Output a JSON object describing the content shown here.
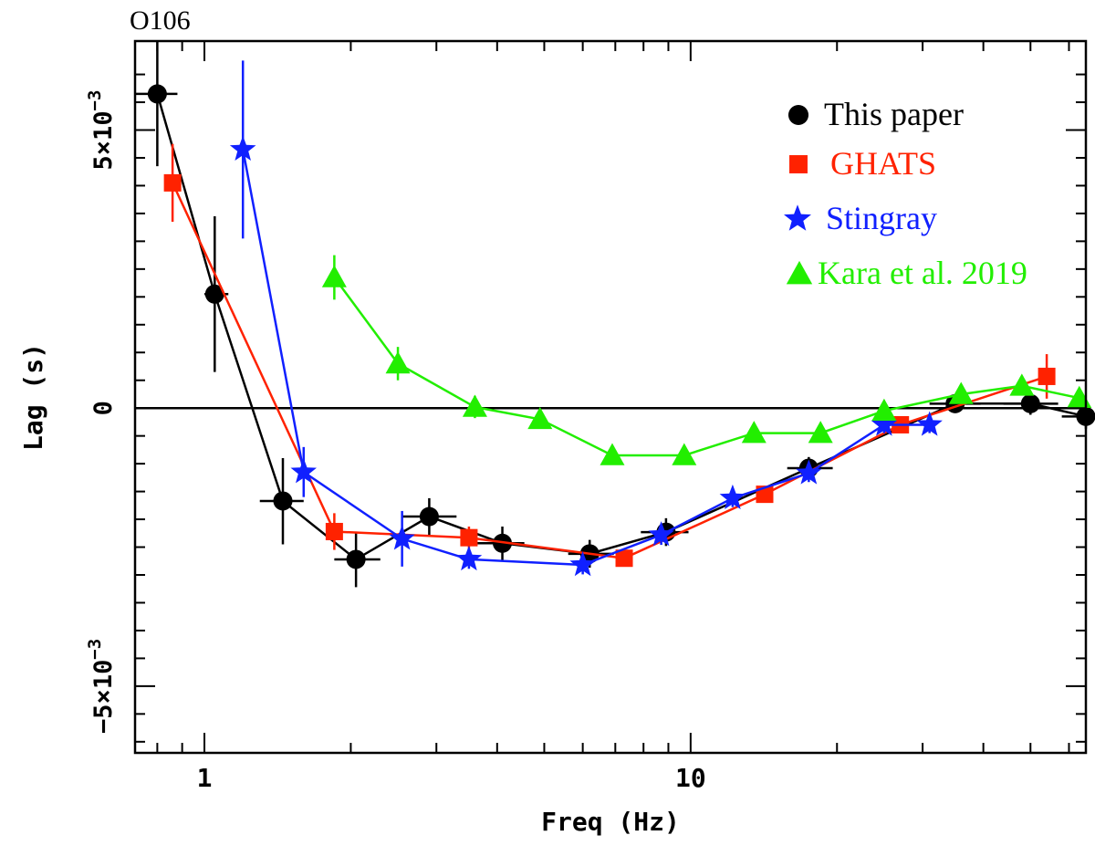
{
  "chart_data": {
    "type": "scatter",
    "title": "O106",
    "xlabel": "Freq (Hz)",
    "ylabel": "Lag (s)",
    "xscale": "log",
    "xlim": [
      0.72,
      65
    ],
    "ylim": [
      -0.0062,
      0.0066
    ],
    "xticks": [
      {
        "value": 1,
        "label": "1"
      },
      {
        "value": 10,
        "label": "10"
      }
    ],
    "yticks": [
      {
        "value": 0.005,
        "mant": "5×10",
        "exp": "−3"
      },
      {
        "value": 0,
        "mant": "0",
        "exp": ""
      },
      {
        "value": -0.005,
        "mant": "−5×10",
        "exp": "−3"
      }
    ],
    "reference_line_y": 0,
    "legend_position": "top-right",
    "series": [
      {
        "name": "This paper",
        "color": "#000000",
        "marker": "circle",
        "points": [
          {
            "x": 0.8,
            "y": 0.00565,
            "xlo": 0.72,
            "xhi": 0.88,
            "ylo": 0.00435,
            "yhi": 0.00695
          },
          {
            "x": 1.05,
            "y": 0.00205,
            "xlo": 1.0,
            "xhi": 1.12,
            "ylo": 0.00065,
            "yhi": 0.00345
          },
          {
            "x": 1.45,
            "y": -0.00167,
            "xlo": 1.3,
            "xhi": 1.6,
            "ylo": -0.00245,
            "yhi": -0.0009
          },
          {
            "x": 2.05,
            "y": -0.00272,
            "xlo": 1.85,
            "xhi": 2.3,
            "ylo": -0.00322,
            "yhi": -0.00222
          },
          {
            "x": 2.9,
            "y": -0.00195,
            "xlo": 2.55,
            "xhi": 3.3,
            "ylo": -0.00228,
            "yhi": -0.00162
          },
          {
            "x": 4.1,
            "y": -0.00243,
            "xlo": 3.6,
            "xhi": 4.55,
            "ylo": -0.00273,
            "yhi": -0.00213
          },
          {
            "x": 6.2,
            "y": -0.00262,
            "xlo": 5.6,
            "xhi": 6.95,
            "ylo": -0.00287,
            "yhi": -0.00237
          },
          {
            "x": 8.9,
            "y": -0.00223,
            "xlo": 7.9,
            "xhi": 9.9,
            "ylo": -0.00248,
            "yhi": -0.00198
          },
          {
            "x": 17.5,
            "y": -0.00108,
            "xlo": 15.8,
            "xhi": 19.6,
            "ylo": -0.00128,
            "yhi": -0.00088
          },
          {
            "x": 35,
            "y": 8e-05,
            "xlo": 31,
            "xhi": 39.5,
            "ylo": -8e-05,
            "yhi": 0.00024
          },
          {
            "x": 50,
            "y": 8e-05,
            "xlo": 44,
            "xhi": 57,
            "ylo": -0.00012,
            "yhi": 0.00028
          },
          {
            "x": 65,
            "y": -0.00015,
            "xlo": 58,
            "xhi": 65,
            "ylo": -0.00037,
            "yhi": 7e-05
          }
        ]
      },
      {
        "name": "GHATS",
        "color": "#ff2200",
        "marker": "square",
        "points": [
          {
            "x": 0.86,
            "y": 0.00405,
            "ylo": 0.00335,
            "yhi": 0.00475
          },
          {
            "x": 1.85,
            "y": -0.00222,
            "ylo": -0.00255,
            "yhi": -0.00189
          },
          {
            "x": 3.5,
            "y": -0.00233,
            "ylo": -0.00253,
            "yhi": -0.00213
          },
          {
            "x": 7.3,
            "y": -0.0027,
            "ylo": -0.00285,
            "yhi": -0.00255
          },
          {
            "x": 14.2,
            "y": -0.00155,
            "ylo": -0.0017,
            "yhi": -0.0014
          },
          {
            "x": 27,
            "y": -0.0003,
            "ylo": -0.00045,
            "yhi": -0.00015
          },
          {
            "x": 54,
            "y": 0.00057,
            "ylo": 0.00017,
            "yhi": 0.00097
          }
        ]
      },
      {
        "name": "Stingray",
        "color": "#1020ff",
        "marker": "star",
        "points": [
          {
            "x": 1.2,
            "y": 0.00465,
            "ylo": 0.00305,
            "yhi": 0.00625
          },
          {
            "x": 1.6,
            "y": -0.00115,
            "ylo": -0.0016,
            "yhi": -0.0007
          },
          {
            "x": 2.55,
            "y": -0.00235,
            "ylo": -0.00285,
            "yhi": -0.00185
          },
          {
            "x": 3.5,
            "y": -0.00272,
            "ylo": -0.00289,
            "yhi": -0.00255
          },
          {
            "x": 6.0,
            "y": -0.00282,
            "ylo": -0.00299,
            "yhi": -0.00265
          },
          {
            "x": 8.7,
            "y": -0.00228,
            "ylo": -0.00246,
            "yhi": -0.0021
          },
          {
            "x": 12.2,
            "y": -0.00162,
            "ylo": -0.00178,
            "yhi": -0.00146
          },
          {
            "x": 17.5,
            "y": -0.00117,
            "ylo": -0.00133,
            "yhi": -0.00101
          },
          {
            "x": 25,
            "y": -0.0003,
            "ylo": -0.00045,
            "yhi": -0.00015
          },
          {
            "x": 31,
            "y": -0.0003,
            "ylo": -0.00045,
            "yhi": -0.00015
          }
        ]
      },
      {
        "name": "Kara et al. 2019",
        "color": "#22ee00",
        "marker": "triangle",
        "points": [
          {
            "x": 1.85,
            "y": 0.00235,
            "ylo": 0.00195,
            "yhi": 0.00275
          },
          {
            "x": 2.5,
            "y": 0.0008,
            "ylo": 0.0005,
            "yhi": 0.0011
          },
          {
            "x": 3.6,
            "y": 2e-05,
            "ylo": -0.00018,
            "yhi": 0.00022
          },
          {
            "x": 4.9,
            "y": -0.0002,
            "ylo": -0.00035,
            "yhi": -5e-05
          },
          {
            "x": 6.9,
            "y": -0.00085,
            "ylo": -0.001,
            "yhi": -0.0007
          },
          {
            "x": 9.7,
            "y": -0.00085,
            "ylo": -0.001,
            "yhi": -0.0007
          },
          {
            "x": 13.5,
            "y": -0.00045,
            "ylo": -0.0006,
            "yhi": -0.0003
          },
          {
            "x": 18.5,
            "y": -0.00045,
            "ylo": -0.0006,
            "yhi": -0.0003
          },
          {
            "x": 25,
            "y": -5e-05,
            "ylo": -0.0002,
            "yhi": 0.0001
          },
          {
            "x": 36,
            "y": 0.00025,
            "ylo": 0.0001,
            "yhi": 0.0004
          },
          {
            "x": 48,
            "y": 0.0004,
            "ylo": 0.00025,
            "yhi": 0.00055
          },
          {
            "x": 63,
            "y": 0.00018,
            "ylo": 3e-05,
            "yhi": 0.00033
          }
        ]
      }
    ]
  }
}
